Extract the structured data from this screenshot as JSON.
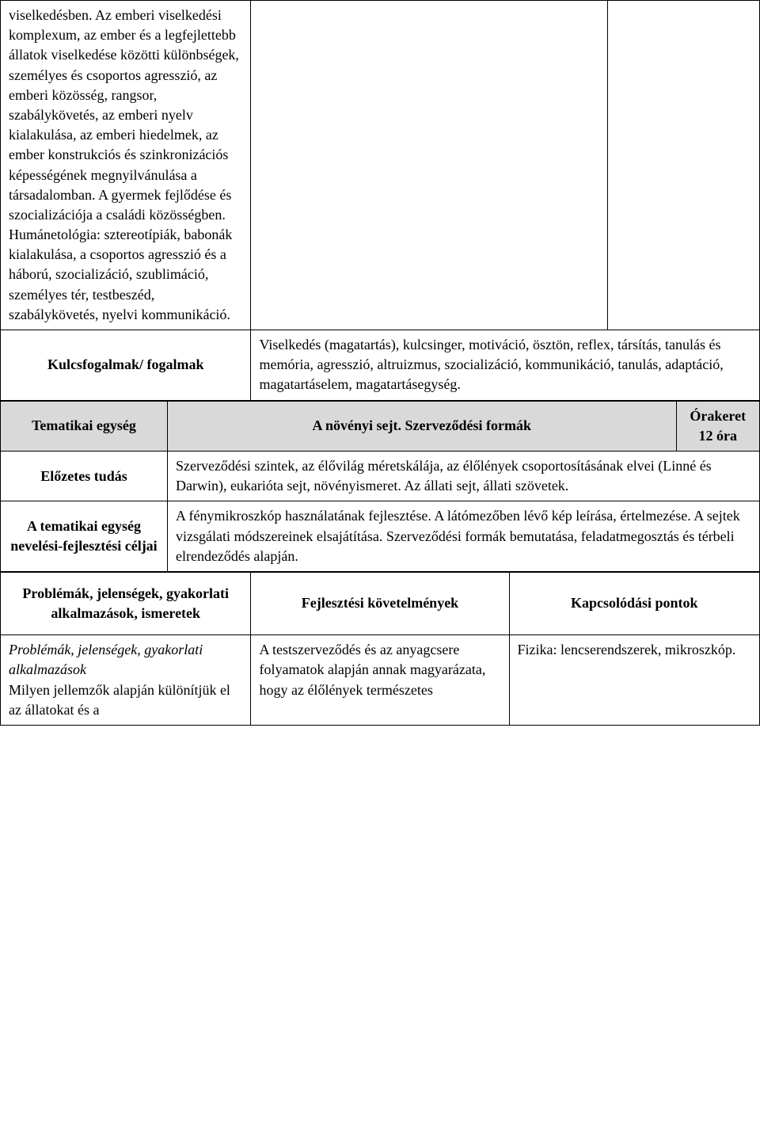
{
  "row1": {
    "col1": "viselkedésben. Az emberi viselkedési komplexum, az ember és a legfejlettebb állatok viselkedése közötti különbségek, személyes és csoportos agresszió, az emberi közösség, rangsor, szabálykövetés, az emberi nyelv kialakulása, az emberi hiedelmek, az ember konstrukciós és szinkronizációs képességének megnyilvánulása a társadalomban. A gyermek fejlődése és szocializációja a családi közösségben. Humánetológia: sztereotípiák, babonák kialakulása, a csoportos agresszió és a háború, szocializáció, szublimáció, személyes tér, testbeszéd, szabálykövetés, nyelvi kommunikáció.",
    "col2": "",
    "col3": ""
  },
  "kulcsfogalmak": {
    "label": "Kulcsfogalmak/ fogalmak",
    "content": "Viselkedés (magatartás), kulcsinger, motiváció, ösztön, reflex, társítás, tanulás és memória, agresszió, altruizmus, szocializáció, kommunikáció, tanulás, adaptáció, magatartáselem, magatartásegység."
  },
  "tematikai": {
    "label": "Tematikai egység",
    "title": "A növényi sejt. Szerveződési formák",
    "orakeret_label": "Órakeret",
    "orakeret_value": "12 óra"
  },
  "elozetes": {
    "label": "Előzetes tudás",
    "content": "Szerveződési szintek, az élővilág méretskálája, az élőlények csoportosításának elvei (Linné és Darwin), eukarióta sejt, növényismeret. Az állati sejt, állati szövetek."
  },
  "tematikai_celjai": {
    "label": "A tematikai egység nevelési-fejlesztési céljai",
    "content": "A fénymikroszkóp használatának fejlesztése. A látómezőben lévő kép leírása, értelmezése. A sejtek vizsgálati módszereinek elsajátítása. Szerveződési formák bemutatása, feladatmegosztás és térbeli elrendeződés alapján."
  },
  "headers": {
    "problemak": "Problémák, jelenségek, gyakorlati alkalmazások, ismeretek",
    "fejlesztes": "Fejlesztési követelmények",
    "kapcsolodas": "Kapcsolódási pontok"
  },
  "content_row": {
    "col1_italic1": "Problémák, jelenségek, gyakorlati ",
    "col1_italic2": "alkalmazások",
    "col1_rest": "Milyen jellemzők alapján különítjük el az állatokat és a",
    "col2": "A testszerveződés és az anyagcsere folyamatok alapján annak magyarázata, hogy az élőlények természetes",
    "col3": "Fizika: lencserendszerek, mikroszkóp."
  }
}
